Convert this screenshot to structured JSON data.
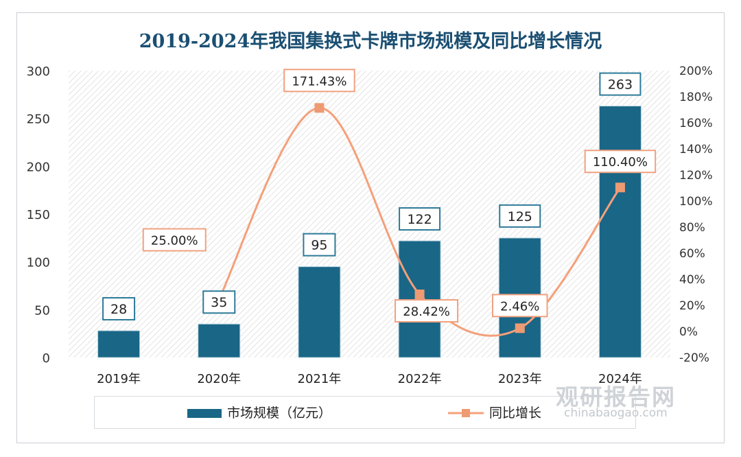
{
  "chart_data": {
    "type": "bar+line",
    "title": "2019-2024年我国集换式卡牌市场规模及同比增长情况",
    "categories": [
      "2019年",
      "2020年",
      "2021年",
      "2022年",
      "2023年",
      "2024年"
    ],
    "series": [
      {
        "name": "市场规模（亿元）",
        "type": "bar",
        "axis": "left",
        "values": [
          28,
          35,
          95,
          122,
          125,
          263
        ],
        "labels": [
          "28",
          "35",
          "95",
          "122",
          "125",
          "263"
        ],
        "color": "#1a6686"
      },
      {
        "name": "同比增长",
        "type": "line",
        "axis": "right",
        "values": [
          null,
          25.0,
          171.43,
          28.42,
          2.46,
          110.4
        ],
        "labels": [
          "",
          "25.00%",
          "171.43%",
          "28.42%",
          "2.46%",
          "110.40%"
        ],
        "color": "#f4a07a"
      }
    ],
    "y_left": {
      "min": 0,
      "max": 300,
      "ticks": [
        "0",
        "50",
        "100",
        "150",
        "200",
        "250",
        "300"
      ]
    },
    "y_right": {
      "min": -20,
      "max": 200,
      "ticks": [
        "-20%",
        "0%",
        "20%",
        "40%",
        "60%",
        "80%",
        "100%",
        "120%",
        "140%",
        "160%",
        "180%",
        "200%"
      ]
    },
    "legend_position": "bottom"
  },
  "watermark": {
    "cn": "观研报告网",
    "en": "chinabaogao.com"
  }
}
